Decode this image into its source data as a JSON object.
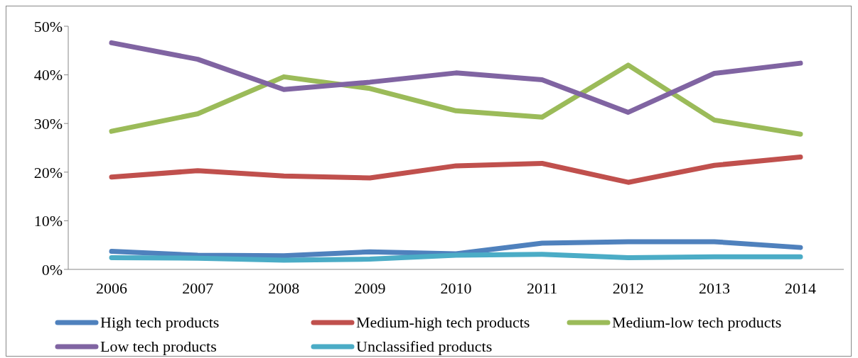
{
  "chart_data": {
    "type": "line",
    "categories": [
      "2006",
      "2007",
      "2008",
      "2009",
      "2010",
      "2011",
      "2012",
      "2013",
      "2014"
    ],
    "series": [
      {
        "name": "High tech products",
        "color": "#4f81bd",
        "values": [
          3.7,
          2.9,
          2.8,
          3.6,
          3.2,
          5.4,
          5.7,
          5.7,
          4.5
        ]
      },
      {
        "name": "Medium-high tech products",
        "color": "#c0504d",
        "values": [
          19.0,
          20.3,
          19.2,
          18.8,
          21.3,
          21.8,
          17.9,
          21.4,
          23.1
        ]
      },
      {
        "name": "Medium-low tech products",
        "color": "#9bbb59",
        "values": [
          28.4,
          32.0,
          39.6,
          37.2,
          32.6,
          31.3,
          42.0,
          30.7,
          27.8
        ]
      },
      {
        "name": "Low tech products",
        "color": "#8064a2",
        "values": [
          46.6,
          43.2,
          37.0,
          38.5,
          40.4,
          39.0,
          32.3,
          40.3,
          42.4
        ]
      },
      {
        "name": "Unclassified products",
        "color": "#4bacc6",
        "values": [
          2.4,
          2.3,
          1.9,
          2.1,
          2.9,
          3.1,
          2.4,
          2.6,
          2.6
        ]
      }
    ],
    "ylim": [
      0,
      50
    ],
    "yticks": [
      {
        "value": 0,
        "label": "0%"
      },
      {
        "value": 10,
        "label": "10%"
      },
      {
        "value": 20,
        "label": "20%"
      },
      {
        "value": 30,
        "label": "30%"
      },
      {
        "value": 40,
        "label": "40%"
      },
      {
        "value": 50,
        "label": "50%"
      }
    ],
    "grid": false,
    "legend": "bottom",
    "marker": "none",
    "line_style": "solid"
  }
}
